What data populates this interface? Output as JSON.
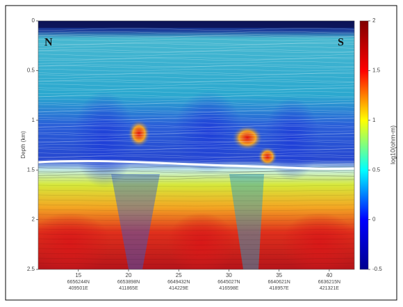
{
  "chart_data": {
    "type": "section",
    "ylabel": "Depth (km)",
    "ylim": [
      0,
      2.5
    ],
    "yticks": [
      0,
      0.5,
      1,
      1.5,
      2,
      2.5
    ],
    "xlim": [
      11,
      42.5
    ],
    "xticks": [
      15,
      20,
      25,
      30,
      35,
      40
    ],
    "x_tick_coords": [
      [
        "6656244N",
        "409501E"
      ],
      [
        "6653898N",
        "411865E"
      ],
      [
        "6649432N",
        "414229E"
      ],
      [
        "6645027N",
        "416598E"
      ],
      [
        "6640621N",
        "418957E"
      ],
      [
        "6636215N",
        "421321E"
      ]
    ],
    "annotations": [
      "N",
      "S"
    ],
    "colorbar": {
      "label": "log10(ohm-m)",
      "lim": [
        -0.5,
        2
      ],
      "ticks": [
        -0.5,
        0,
        0.5,
        1,
        1.5,
        2
      ],
      "colormap": [
        "#00008f",
        "#0000ff",
        "#00ffff",
        "#ffff00",
        "#ff0000",
        "#800000"
      ]
    }
  }
}
